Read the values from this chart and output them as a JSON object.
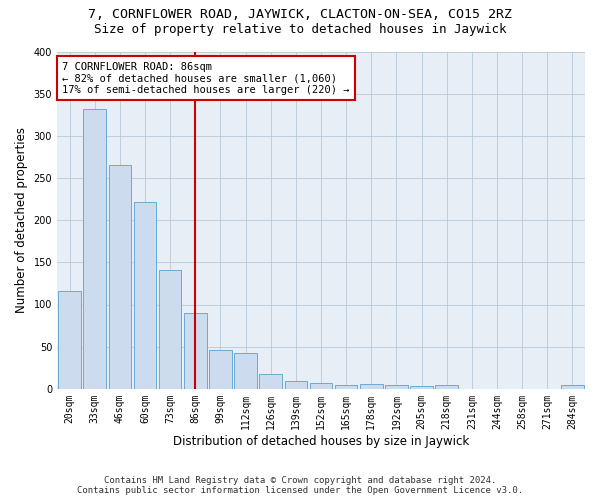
{
  "title": "7, CORNFLOWER ROAD, JAYWICK, CLACTON-ON-SEA, CO15 2RZ",
  "subtitle": "Size of property relative to detached houses in Jaywick",
  "xlabel": "Distribution of detached houses by size in Jaywick",
  "ylabel": "Number of detached properties",
  "categories": [
    "20sqm",
    "33sqm",
    "46sqm",
    "60sqm",
    "73sqm",
    "86sqm",
    "99sqm",
    "112sqm",
    "126sqm",
    "139sqm",
    "152sqm",
    "165sqm",
    "178sqm",
    "192sqm",
    "205sqm",
    "218sqm",
    "231sqm",
    "244sqm",
    "258sqm",
    "271sqm",
    "284sqm"
  ],
  "values": [
    116,
    332,
    266,
    222,
    141,
    90,
    46,
    42,
    18,
    9,
    7,
    5,
    6,
    4,
    3,
    4,
    0,
    0,
    0,
    0,
    5
  ],
  "bar_color": "#ccdcee",
  "bar_edge_color": "#6aaad4",
  "highlight_index": 5,
  "highlight_color_line": "#cc0000",
  "annotation_line1": "7 CORNFLOWER ROAD: 86sqm",
  "annotation_line2": "← 82% of detached houses are smaller (1,060)",
  "annotation_line3": "17% of semi-detached houses are larger (220) →",
  "annotation_box_color": "#ffffff",
  "annotation_box_edge": "#cc0000",
  "ylim": [
    0,
    400
  ],
  "yticks": [
    0,
    50,
    100,
    150,
    200,
    250,
    300,
    350,
    400
  ],
  "footer_line1": "Contains HM Land Registry data © Crown copyright and database right 2024.",
  "footer_line2": "Contains public sector information licensed under the Open Government Licence v3.0.",
  "bg_color": "#ffffff",
  "plot_bg_color": "#e8eef5",
  "grid_color": "#b8c8d8",
  "title_fontsize": 9.5,
  "subtitle_fontsize": 9,
  "axis_label_fontsize": 8.5,
  "tick_fontsize": 7,
  "annotation_fontsize": 7.5,
  "footer_fontsize": 6.5
}
